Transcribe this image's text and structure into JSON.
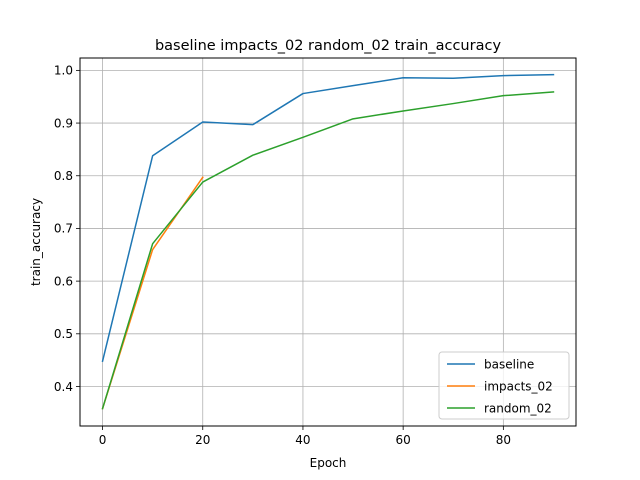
{
  "chart_data": {
    "type": "line",
    "title": "baseline impacts_02 random_02 train_accuracy",
    "xlabel": "Epoch",
    "ylabel": "train_accuracy",
    "xlim": [
      -4.5,
      94.5
    ],
    "ylim": [
      0.325,
      1.0235
    ],
    "xticks": [
      0,
      20,
      40,
      60,
      80
    ],
    "yticks": [
      0.4,
      0.5,
      0.6,
      0.7,
      0.8,
      0.9,
      1.0
    ],
    "grid": true,
    "legend_position": "lower-right",
    "series": [
      {
        "name": "baseline",
        "color": "#1f77b4",
        "x": [
          0,
          10,
          20,
          30,
          40,
          50,
          60,
          70,
          80,
          90
        ],
        "y": [
          0.448,
          0.838,
          0.902,
          0.897,
          0.956,
          0.971,
          0.986,
          0.985,
          0.99,
          0.992
        ]
      },
      {
        "name": "impacts_02",
        "color": "#ff7f0e",
        "x": [
          0,
          10,
          20
        ],
        "y": [
          0.358,
          0.66,
          0.797
        ]
      },
      {
        "name": "random_02",
        "color": "#2ca02c",
        "x": [
          0,
          10,
          20,
          30,
          40,
          50,
          60,
          70,
          80,
          90
        ],
        "y": [
          0.358,
          0.671,
          0.788,
          0.839,
          0.873,
          0.908,
          0.923,
          0.937,
          0.952,
          0.959
        ]
      }
    ]
  }
}
